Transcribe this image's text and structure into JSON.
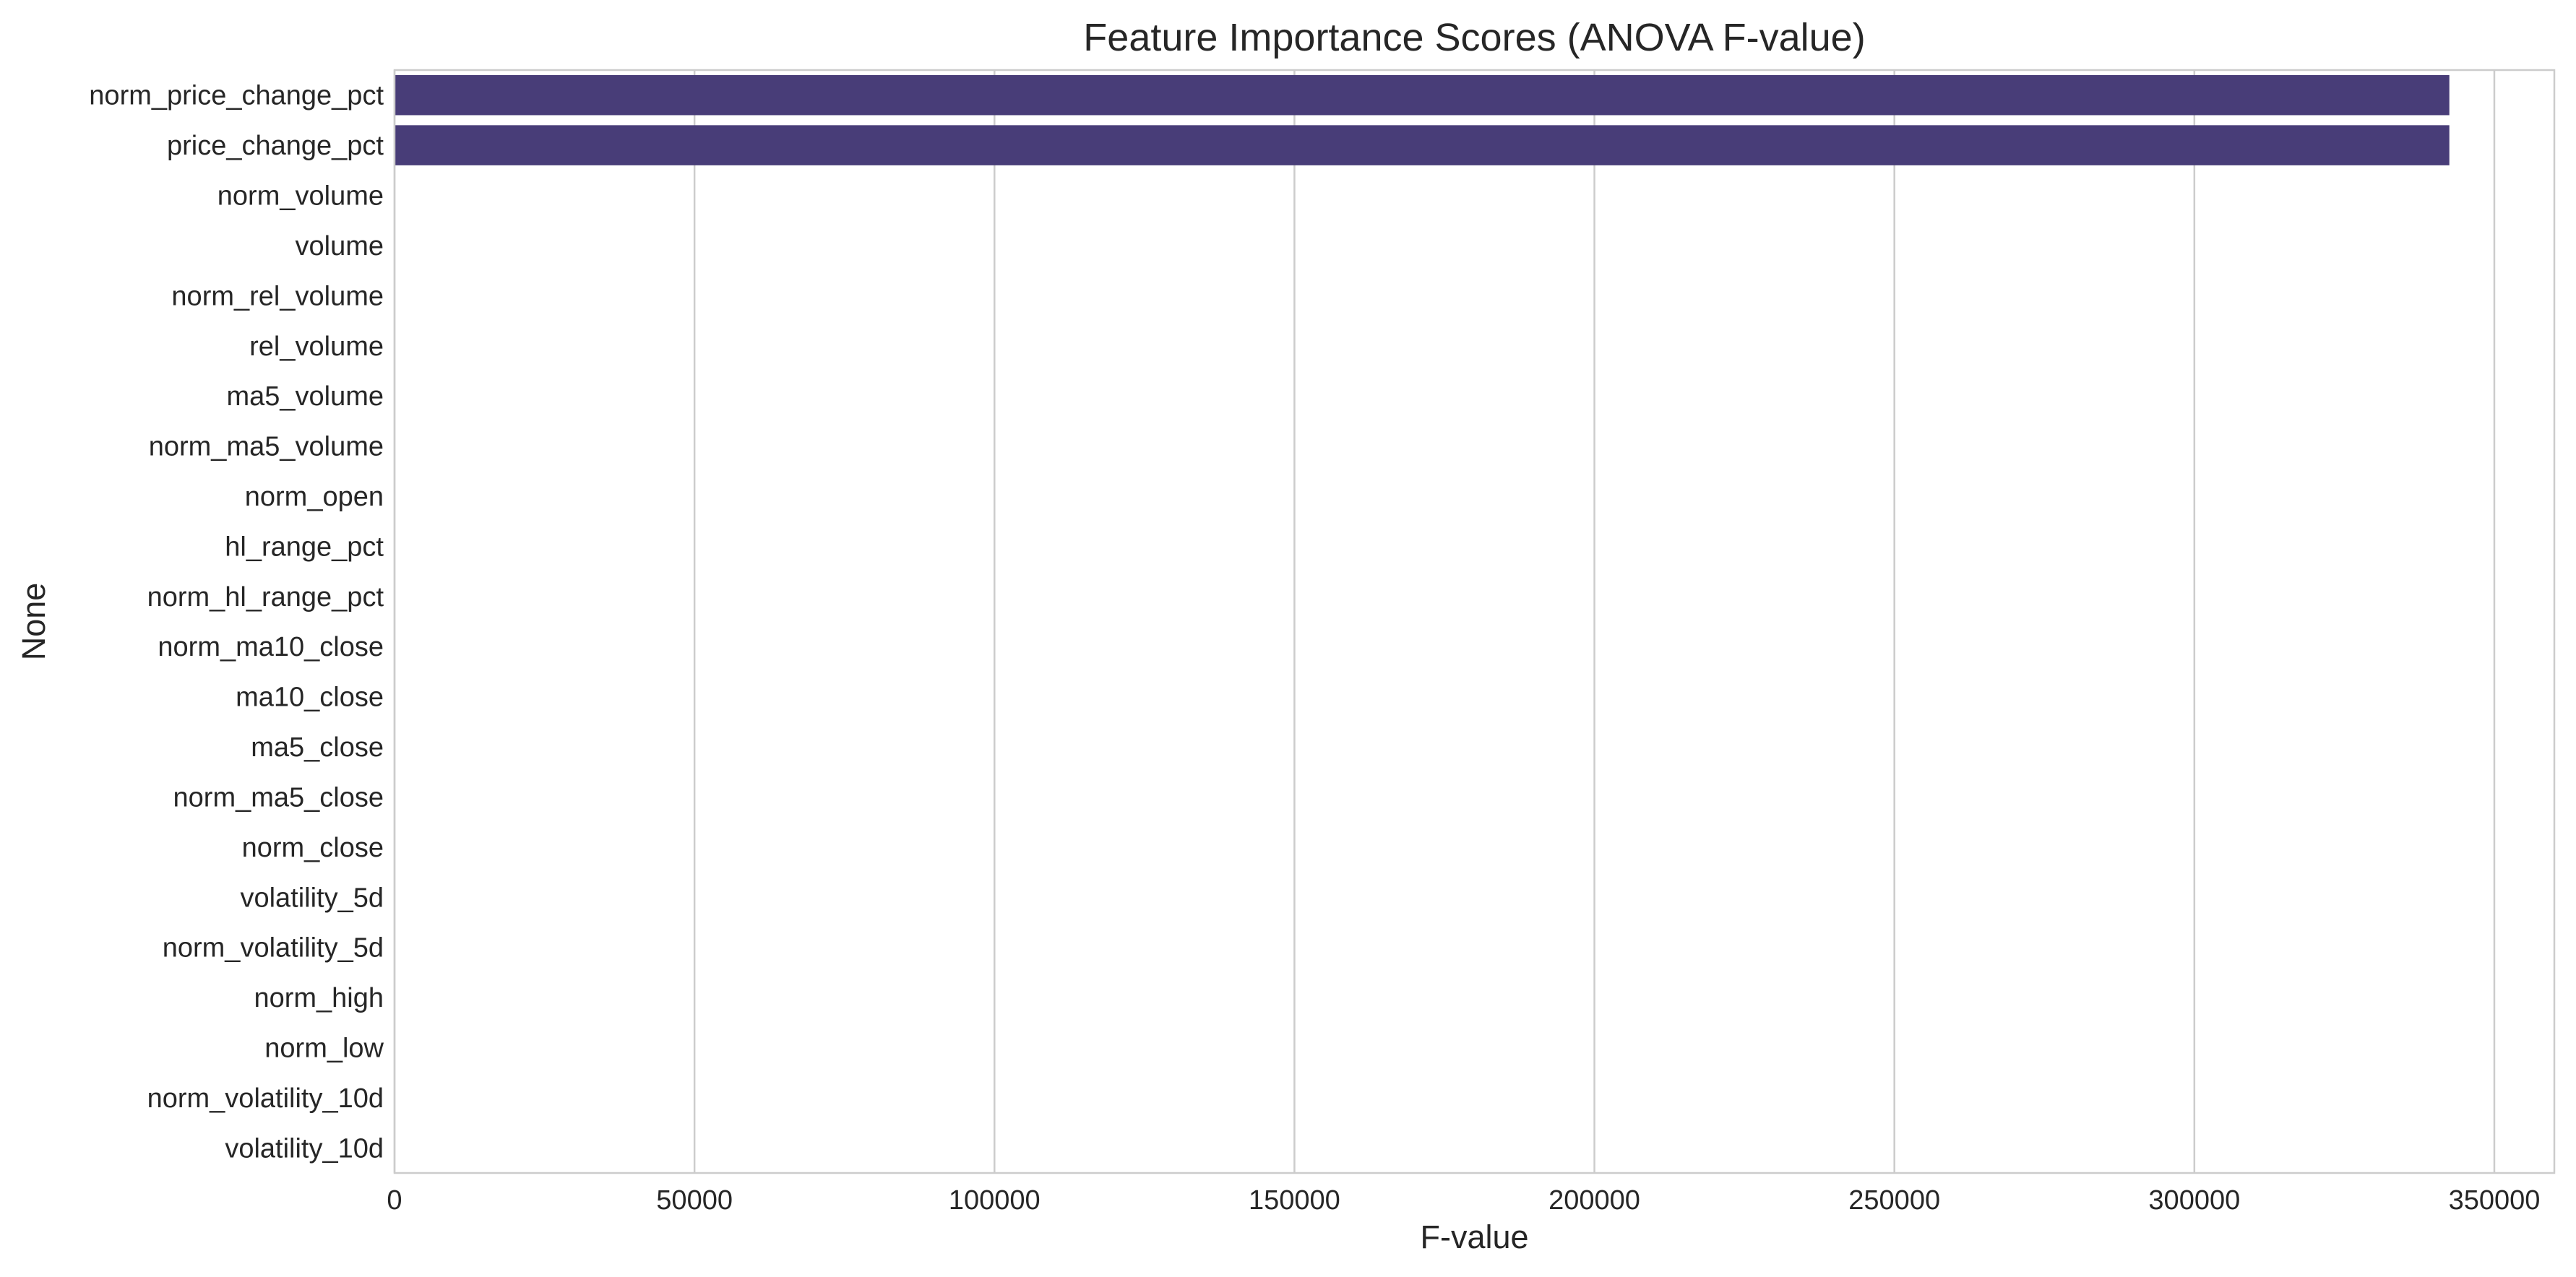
{
  "chart_data": {
    "type": "bar",
    "orientation": "horizontal",
    "title": "Feature Importance Scores (ANOVA F-value)",
    "xlabel": "F-value",
    "ylabel": "None",
    "xlim": [
      0,
      360000
    ],
    "xticks": [
      0,
      50000,
      100000,
      150000,
      200000,
      250000,
      300000,
      350000
    ],
    "grid": "vertical",
    "bar_color": "#483d78",
    "categories": [
      "norm_price_change_pct",
      "price_change_pct",
      "norm_volume",
      "volume",
      "norm_rel_volume",
      "rel_volume",
      "ma5_volume",
      "norm_ma5_volume",
      "norm_open",
      "hl_range_pct",
      "norm_hl_range_pct",
      "norm_ma10_close",
      "ma10_close",
      "ma5_close",
      "norm_ma5_close",
      "norm_close",
      "volatility_5d",
      "norm_volatility_5d",
      "norm_high",
      "norm_low",
      "norm_volatility_10d",
      "volatility_10d"
    ],
    "values": [
      342500,
      342500,
      60,
      60,
      50,
      50,
      40,
      40,
      30,
      25,
      25,
      20,
      20,
      18,
      18,
      15,
      12,
      12,
      10,
      10,
      8,
      8
    ]
  }
}
